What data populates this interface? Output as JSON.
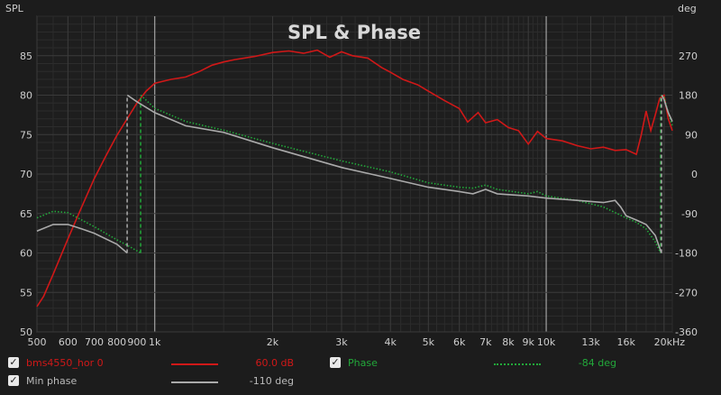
{
  "chart_data": {
    "type": "line",
    "title": "SPL & Phase",
    "ylabel_left": "SPL",
    "ylabel_right": "deg",
    "x_scale": "log",
    "xlim": [
      500,
      21000
    ],
    "ylim_left": [
      50,
      90
    ],
    "ylim_right": [
      -360,
      360
    ],
    "x_ticks": [
      {
        "v": 500,
        "label": "500"
      },
      {
        "v": 600,
        "label": "600"
      },
      {
        "v": 700,
        "label": "700"
      },
      {
        "v": 800,
        "label": "800"
      },
      {
        "v": 900,
        "label": "900"
      },
      {
        "v": 1000,
        "label": "1k"
      },
      {
        "v": 2000,
        "label": "2k"
      },
      {
        "v": 3000,
        "label": "3k"
      },
      {
        "v": 4000,
        "label": "4k"
      },
      {
        "v": 5000,
        "label": "5k"
      },
      {
        "v": 6000,
        "label": "6k"
      },
      {
        "v": 7000,
        "label": "7k"
      },
      {
        "v": 8000,
        "label": "8k"
      },
      {
        "v": 9000,
        "label": "9k"
      },
      {
        "v": 10000,
        "label": "10k"
      },
      {
        "v": 13000,
        "label": "13k"
      },
      {
        "v": 16000,
        "label": "16k"
      },
      {
        "v": 20000,
        "label": "20kHz"
      }
    ],
    "y_ticks_left": [
      50,
      55,
      60,
      65,
      70,
      75,
      80,
      85
    ],
    "y_ticks_right": [
      -360,
      -270,
      -180,
      -90,
      0,
      90,
      180,
      270
    ],
    "grid": true,
    "legend_position": "bottom",
    "series": [
      {
        "name": "bms4550_hor 0",
        "axis": "left",
        "color": "#d01818",
        "style": "solid",
        "points": [
          [
            500,
            53.2
          ],
          [
            520,
            54.5
          ],
          [
            550,
            57.3
          ],
          [
            600,
            61.8
          ],
          [
            650,
            65.8
          ],
          [
            700,
            69.4
          ],
          [
            750,
            72.3
          ],
          [
            800,
            74.9
          ],
          [
            850,
            77
          ],
          [
            900,
            79
          ],
          [
            950,
            80.5
          ],
          [
            1000,
            81.5
          ],
          [
            1100,
            82
          ],
          [
            1200,
            82.3
          ],
          [
            1300,
            83
          ],
          [
            1400,
            83.8
          ],
          [
            1500,
            84.2
          ],
          [
            1600,
            84.5
          ],
          [
            1800,
            84.9
          ],
          [
            2000,
            85.4
          ],
          [
            2200,
            85.6
          ],
          [
            2400,
            85.3
          ],
          [
            2600,
            85.7
          ],
          [
            2800,
            84.8
          ],
          [
            3000,
            85.5
          ],
          [
            3200,
            85
          ],
          [
            3500,
            84.7
          ],
          [
            3800,
            83.5
          ],
          [
            4000,
            82.9
          ],
          [
            4300,
            82
          ],
          [
            4700,
            81.3
          ],
          [
            5000,
            80.5
          ],
          [
            5500,
            79.3
          ],
          [
            6000,
            78.3
          ],
          [
            6300,
            76.6
          ],
          [
            6700,
            77.8
          ],
          [
            7000,
            76.5
          ],
          [
            7500,
            76.9
          ],
          [
            8000,
            75.9
          ],
          [
            8500,
            75.5
          ],
          [
            9000,
            73.8
          ],
          [
            9500,
            75.4
          ],
          [
            10000,
            74.5
          ],
          [
            11000,
            74.2
          ],
          [
            12000,
            73.6
          ],
          [
            13000,
            73.2
          ],
          [
            14000,
            73.4
          ],
          [
            15000,
            73
          ],
          [
            16000,
            73.1
          ],
          [
            17000,
            72.5
          ],
          [
            17500,
            75
          ],
          [
            18000,
            78
          ],
          [
            18500,
            75.5
          ],
          [
            19000,
            77.5
          ],
          [
            19500,
            79.6
          ],
          [
            20000,
            80
          ],
          [
            20500,
            77
          ],
          [
            21000,
            75.5
          ]
        ]
      },
      {
        "name": "Phase",
        "axis": "right",
        "color": "#22a83a",
        "style": "dotted",
        "points": [
          [
            500,
            -100
          ],
          [
            550,
            -85
          ],
          [
            600,
            -88
          ],
          [
            700,
            -120
          ],
          [
            800,
            -150
          ],
          [
            860,
            -165
          ],
          [
            900,
            -175
          ],
          [
            920,
            -180
          ],
          [
            921,
            180
          ],
          [
            1000,
            150
          ],
          [
            1200,
            120
          ],
          [
            1500,
            100
          ],
          [
            2000,
            70
          ],
          [
            3000,
            30
          ],
          [
            4000,
            5
          ],
          [
            5000,
            -20
          ],
          [
            6000,
            -30
          ],
          [
            6500,
            -32
          ],
          [
            7000,
            -25
          ],
          [
            7500,
            -35
          ],
          [
            9000,
            -45
          ],
          [
            9500,
            -40
          ],
          [
            10000,
            -50
          ],
          [
            12000,
            -60
          ],
          [
            14000,
            -75
          ],
          [
            16000,
            -100
          ],
          [
            17000,
            -110
          ],
          [
            18000,
            -125
          ],
          [
            19000,
            -155
          ],
          [
            19600,
            -180
          ],
          [
            19650,
            180
          ],
          [
            20000,
            175
          ],
          [
            20500,
            140
          ],
          [
            21000,
            110
          ]
        ]
      },
      {
        "name": "Min phase",
        "axis": "right",
        "color": "#aaaaaa",
        "style": "solid",
        "points": [
          [
            500,
            -130
          ],
          [
            550,
            -115
          ],
          [
            600,
            -115
          ],
          [
            650,
            -125
          ],
          [
            700,
            -135
          ],
          [
            800,
            -160
          ],
          [
            850,
            -180
          ],
          [
            851,
            180
          ],
          [
            900,
            165
          ],
          [
            1000,
            140
          ],
          [
            1200,
            110
          ],
          [
            1500,
            95
          ],
          [
            2000,
            60
          ],
          [
            3000,
            15
          ],
          [
            4000,
            -10
          ],
          [
            5000,
            -30
          ],
          [
            6000,
            -40
          ],
          [
            6500,
            -45
          ],
          [
            7000,
            -35
          ],
          [
            7500,
            -45
          ],
          [
            9000,
            -50
          ],
          [
            10000,
            -55
          ],
          [
            12000,
            -60
          ],
          [
            14000,
            -65
          ],
          [
            15000,
            -60
          ],
          [
            15500,
            -75
          ],
          [
            16000,
            -95
          ],
          [
            17000,
            -105
          ],
          [
            18000,
            -115
          ],
          [
            19000,
            -140
          ],
          [
            19700,
            -180
          ],
          [
            19750,
            180
          ],
          [
            20000,
            170
          ],
          [
            20500,
            140
          ],
          [
            21000,
            120
          ]
        ]
      }
    ],
    "dropline_color": "#999999"
  },
  "legend": {
    "rows": [
      {
        "check": "✓",
        "name": "bms4550_hor 0",
        "value": "60.0 dB",
        "color": "#d01818",
        "swatch_style": "solid"
      },
      {
        "check": "✓",
        "name": "Phase",
        "value": "-84 deg",
        "color": "#22a83a",
        "swatch_style": "dotted"
      },
      {
        "check": "✓",
        "name": "Min phase",
        "value": "-110 deg",
        "color": "#aaaaaa",
        "swatch_style": "solid"
      }
    ]
  },
  "theme": {
    "background": "#1c1c1c",
    "grid_color": "#3a3a3a",
    "axis_label_color": "#cfcfcf"
  }
}
